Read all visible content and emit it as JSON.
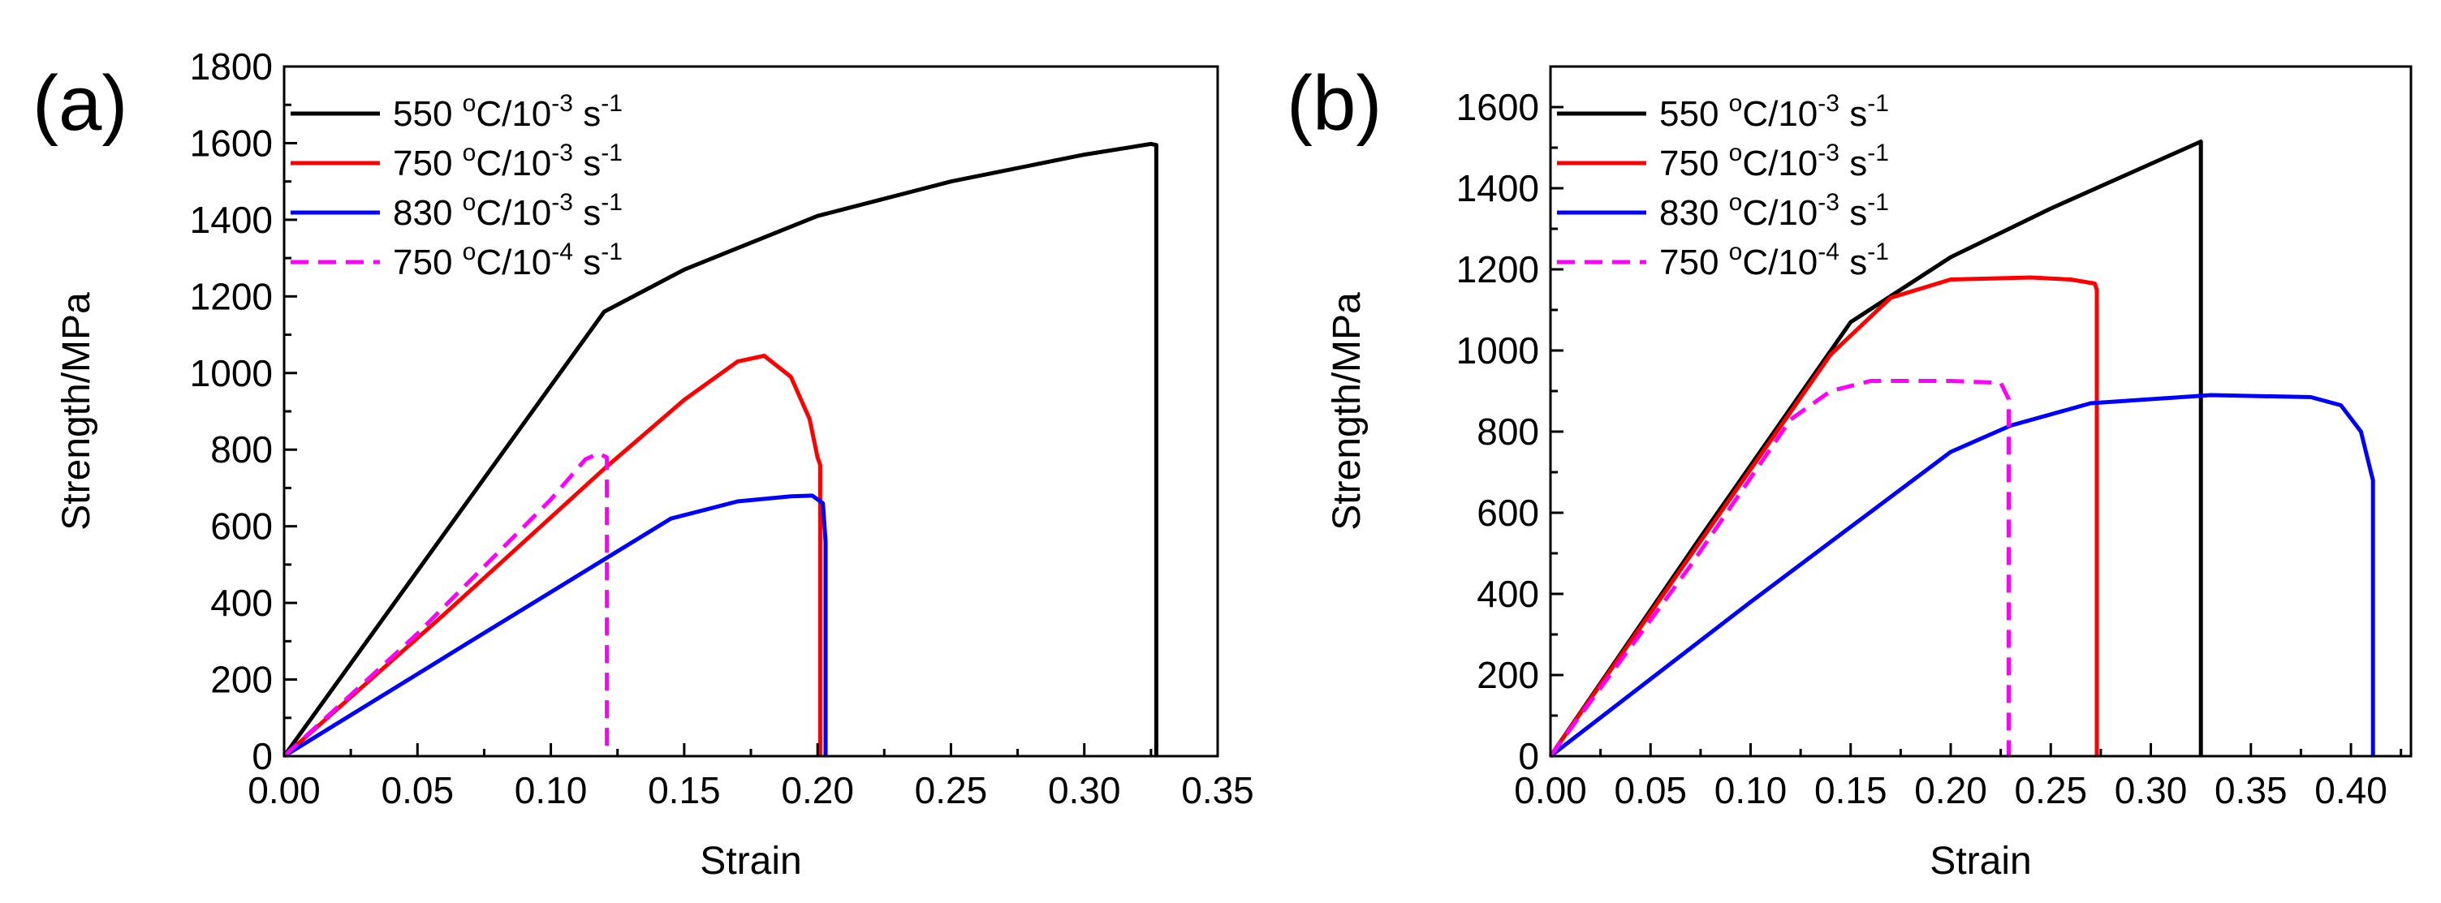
{
  "chart_data": [
    {
      "type": "line",
      "panel_label": "(a)",
      "xlabel": "Strain",
      "ylabel": "Strength/MPa",
      "xlim": [
        0,
        0.35
      ],
      "ylim": [
        0,
        1800
      ],
      "xticks": [
        "0.00",
        "0.05",
        "0.10",
        "0.15",
        "0.20",
        "0.25",
        "0.30",
        "0.35"
      ],
      "yticks": [
        "0",
        "200",
        "400",
        "600",
        "800",
        "1000",
        "1200",
        "1400",
        "1600",
        "1800"
      ],
      "legend_position": "top-left",
      "series": [
        {
          "name": "550 °C/10-3 s-1",
          "legend": {
            "temp": "550 ",
            "deg": "o",
            "unit": "C/10",
            "exp1": "-3",
            "mid": " s",
            "exp2": "-1"
          },
          "color": "#000000",
          "dashed": false,
          "x": [
            0,
            0.06,
            0.12,
            0.15,
            0.2,
            0.25,
            0.3,
            0.325,
            0.327,
            0.327
          ],
          "y": [
            0,
            580,
            1160,
            1270,
            1410,
            1500,
            1570,
            1598,
            1595,
            0
          ]
        },
        {
          "name": "750 °C/10-3 s-1",
          "legend": {
            "temp": "750 ",
            "deg": "o",
            "unit": "C/10",
            "exp1": "-3",
            "mid": " s",
            "exp2": "-1"
          },
          "color": "#ff0000",
          "dashed": false,
          "x": [
            0,
            0.06,
            0.12,
            0.15,
            0.17,
            0.18,
            0.19,
            0.197,
            0.2,
            0.201,
            0.201
          ],
          "y": [
            0,
            370,
            750,
            930,
            1030,
            1045,
            990,
            880,
            780,
            760,
            0
          ]
        },
        {
          "name": "830 °C/10-3 s-1",
          "legend": {
            "temp": "830 ",
            "deg": "o",
            "unit": "C/10",
            "exp1": "-3",
            "mid": " s",
            "exp2": "-1"
          },
          "color": "#0000ff",
          "dashed": false,
          "x": [
            0,
            0.07,
            0.145,
            0.17,
            0.19,
            0.198,
            0.202,
            0.203,
            0.203
          ],
          "y": [
            0,
            300,
            620,
            665,
            678,
            680,
            660,
            560,
            0
          ]
        },
        {
          "name": "750 °C/10-4 s-1",
          "legend": {
            "temp": "750 ",
            "deg": "o",
            "unit": "C/10",
            "exp1": "-4",
            "mid": " s",
            "exp2": "-1"
          },
          "color": "#ff00ff",
          "dashed": true,
          "x": [
            0,
            0.05,
            0.1,
            0.113,
            0.118,
            0.121,
            0.121
          ],
          "y": [
            0,
            320,
            670,
            775,
            790,
            780,
            0
          ]
        }
      ]
    },
    {
      "type": "line",
      "panel_label": "(b)",
      "xlabel": "Strain",
      "ylabel": "Strength/MPa",
      "xlim": [
        0,
        0.43
      ],
      "ylim": [
        0,
        1700
      ],
      "xticks": [
        "0.00",
        "0.05",
        "0.10",
        "0.15",
        "0.20",
        "0.25",
        "0.30",
        "0.35",
        "0.40"
      ],
      "yticks": [
        "0",
        "200",
        "400",
        "600",
        "800",
        "1000",
        "1200",
        "1400",
        "1600"
      ],
      "legend_position": "top-left",
      "series": [
        {
          "name": "550 °C/10-3 s-1",
          "legend": {
            "temp": "550 ",
            "deg": "o",
            "unit": "C/10",
            "exp1": "-3",
            "mid": " s",
            "exp2": "-1"
          },
          "color": "#000000",
          "dashed": false,
          "x": [
            0,
            0.075,
            0.15,
            0.2,
            0.25,
            0.3,
            0.325,
            0.325
          ],
          "y": [
            0,
            540,
            1070,
            1230,
            1350,
            1460,
            1515,
            0
          ]
        },
        {
          "name": "750 °C/10-3 s-1",
          "legend": {
            "temp": "750 ",
            "deg": "o",
            "unit": "C/10",
            "exp1": "-3",
            "mid": " s",
            "exp2": "-1"
          },
          "color": "#ff0000",
          "dashed": false,
          "x": [
            0,
            0.075,
            0.14,
            0.17,
            0.2,
            0.24,
            0.26,
            0.272,
            0.273,
            0.273
          ],
          "y": [
            0,
            530,
            990,
            1130,
            1175,
            1180,
            1175,
            1165,
            1150,
            0
          ]
        },
        {
          "name": "830 °C/10-3 s-1",
          "legend": {
            "temp": "830 ",
            "deg": "o",
            "unit": "C/10",
            "exp1": "-3",
            "mid": " s",
            "exp2": "-1"
          },
          "color": "#0000ff",
          "dashed": false,
          "x": [
            0,
            0.1,
            0.2,
            0.23,
            0.27,
            0.33,
            0.38,
            0.395,
            0.405,
            0.41,
            0.411,
            0.411
          ],
          "y": [
            0,
            380,
            750,
            815,
            870,
            890,
            885,
            865,
            800,
            700,
            680,
            0
          ]
        },
        {
          "name": "750 °C/10-4 s-1",
          "legend": {
            "temp": "750 ",
            "deg": "o",
            "unit": "C/10",
            "exp1": "-4",
            "mid": " s",
            "exp2": "-1"
          },
          "color": "#ff00ff",
          "dashed": true,
          "x": [
            0,
            0.07,
            0.12,
            0.14,
            0.16,
            0.2,
            0.225,
            0.229,
            0.229
          ],
          "y": [
            0,
            470,
            830,
            900,
            925,
            925,
            920,
            880,
            0
          ]
        }
      ]
    }
  ]
}
